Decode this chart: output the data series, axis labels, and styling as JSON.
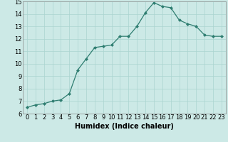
{
  "x": [
    0,
    1,
    2,
    3,
    4,
    5,
    6,
    7,
    8,
    9,
    10,
    11,
    12,
    13,
    14,
    15,
    16,
    17,
    18,
    19,
    20,
    21,
    22,
    23
  ],
  "y": [
    6.5,
    6.7,
    6.8,
    7.0,
    7.1,
    7.6,
    9.5,
    10.4,
    11.3,
    11.4,
    11.5,
    12.2,
    12.2,
    13.0,
    14.1,
    14.9,
    14.6,
    14.5,
    13.5,
    13.2,
    13.0,
    12.3,
    12.2,
    12.2
  ],
  "xlabel": "Humidex (Indice chaleur)",
  "ylim": [
    6,
    15
  ],
  "xlim_min": -0.5,
  "xlim_max": 23.5,
  "yticks": [
    6,
    7,
    8,
    9,
    10,
    11,
    12,
    13,
    14,
    15
  ],
  "xticks": [
    0,
    1,
    2,
    3,
    4,
    5,
    6,
    7,
    8,
    9,
    10,
    11,
    12,
    13,
    14,
    15,
    16,
    17,
    18,
    19,
    20,
    21,
    22,
    23
  ],
  "line_color": "#2e7d70",
  "marker_color": "#2e7d70",
  "bg_color": "#cce9e6",
  "grid_color": "#aad4d0",
  "xlabel_fontsize": 7,
  "tick_fontsize": 6,
  "marker_size": 2.0,
  "line_width": 0.9
}
